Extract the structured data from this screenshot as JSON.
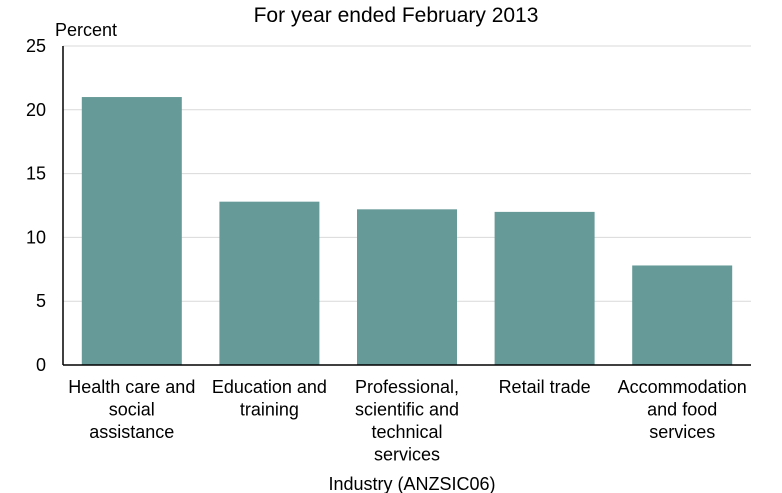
{
  "chart_data": {
    "type": "bar",
    "title": "For year ended February 2013",
    "xlabel": "Industry (ANZSIC06)",
    "ylabel": "Percent",
    "ylim": [
      0,
      25
    ],
    "yticks": [
      0,
      5,
      10,
      15,
      20,
      25
    ],
    "grid": true,
    "categories": [
      [
        "Health care and",
        "social",
        "assistance"
      ],
      [
        "Education and",
        "training"
      ],
      [
        "Professional,",
        "scientific and",
        "technical",
        "services"
      ],
      [
        "Retail trade"
      ],
      [
        "Accommodation",
        "and food",
        "services"
      ]
    ],
    "values": [
      21.0,
      12.8,
      12.2,
      12.0,
      7.8
    ],
    "colors": {
      "bar": "#669a98",
      "grid": "#d9d9d9",
      "axis": "#000000"
    }
  }
}
